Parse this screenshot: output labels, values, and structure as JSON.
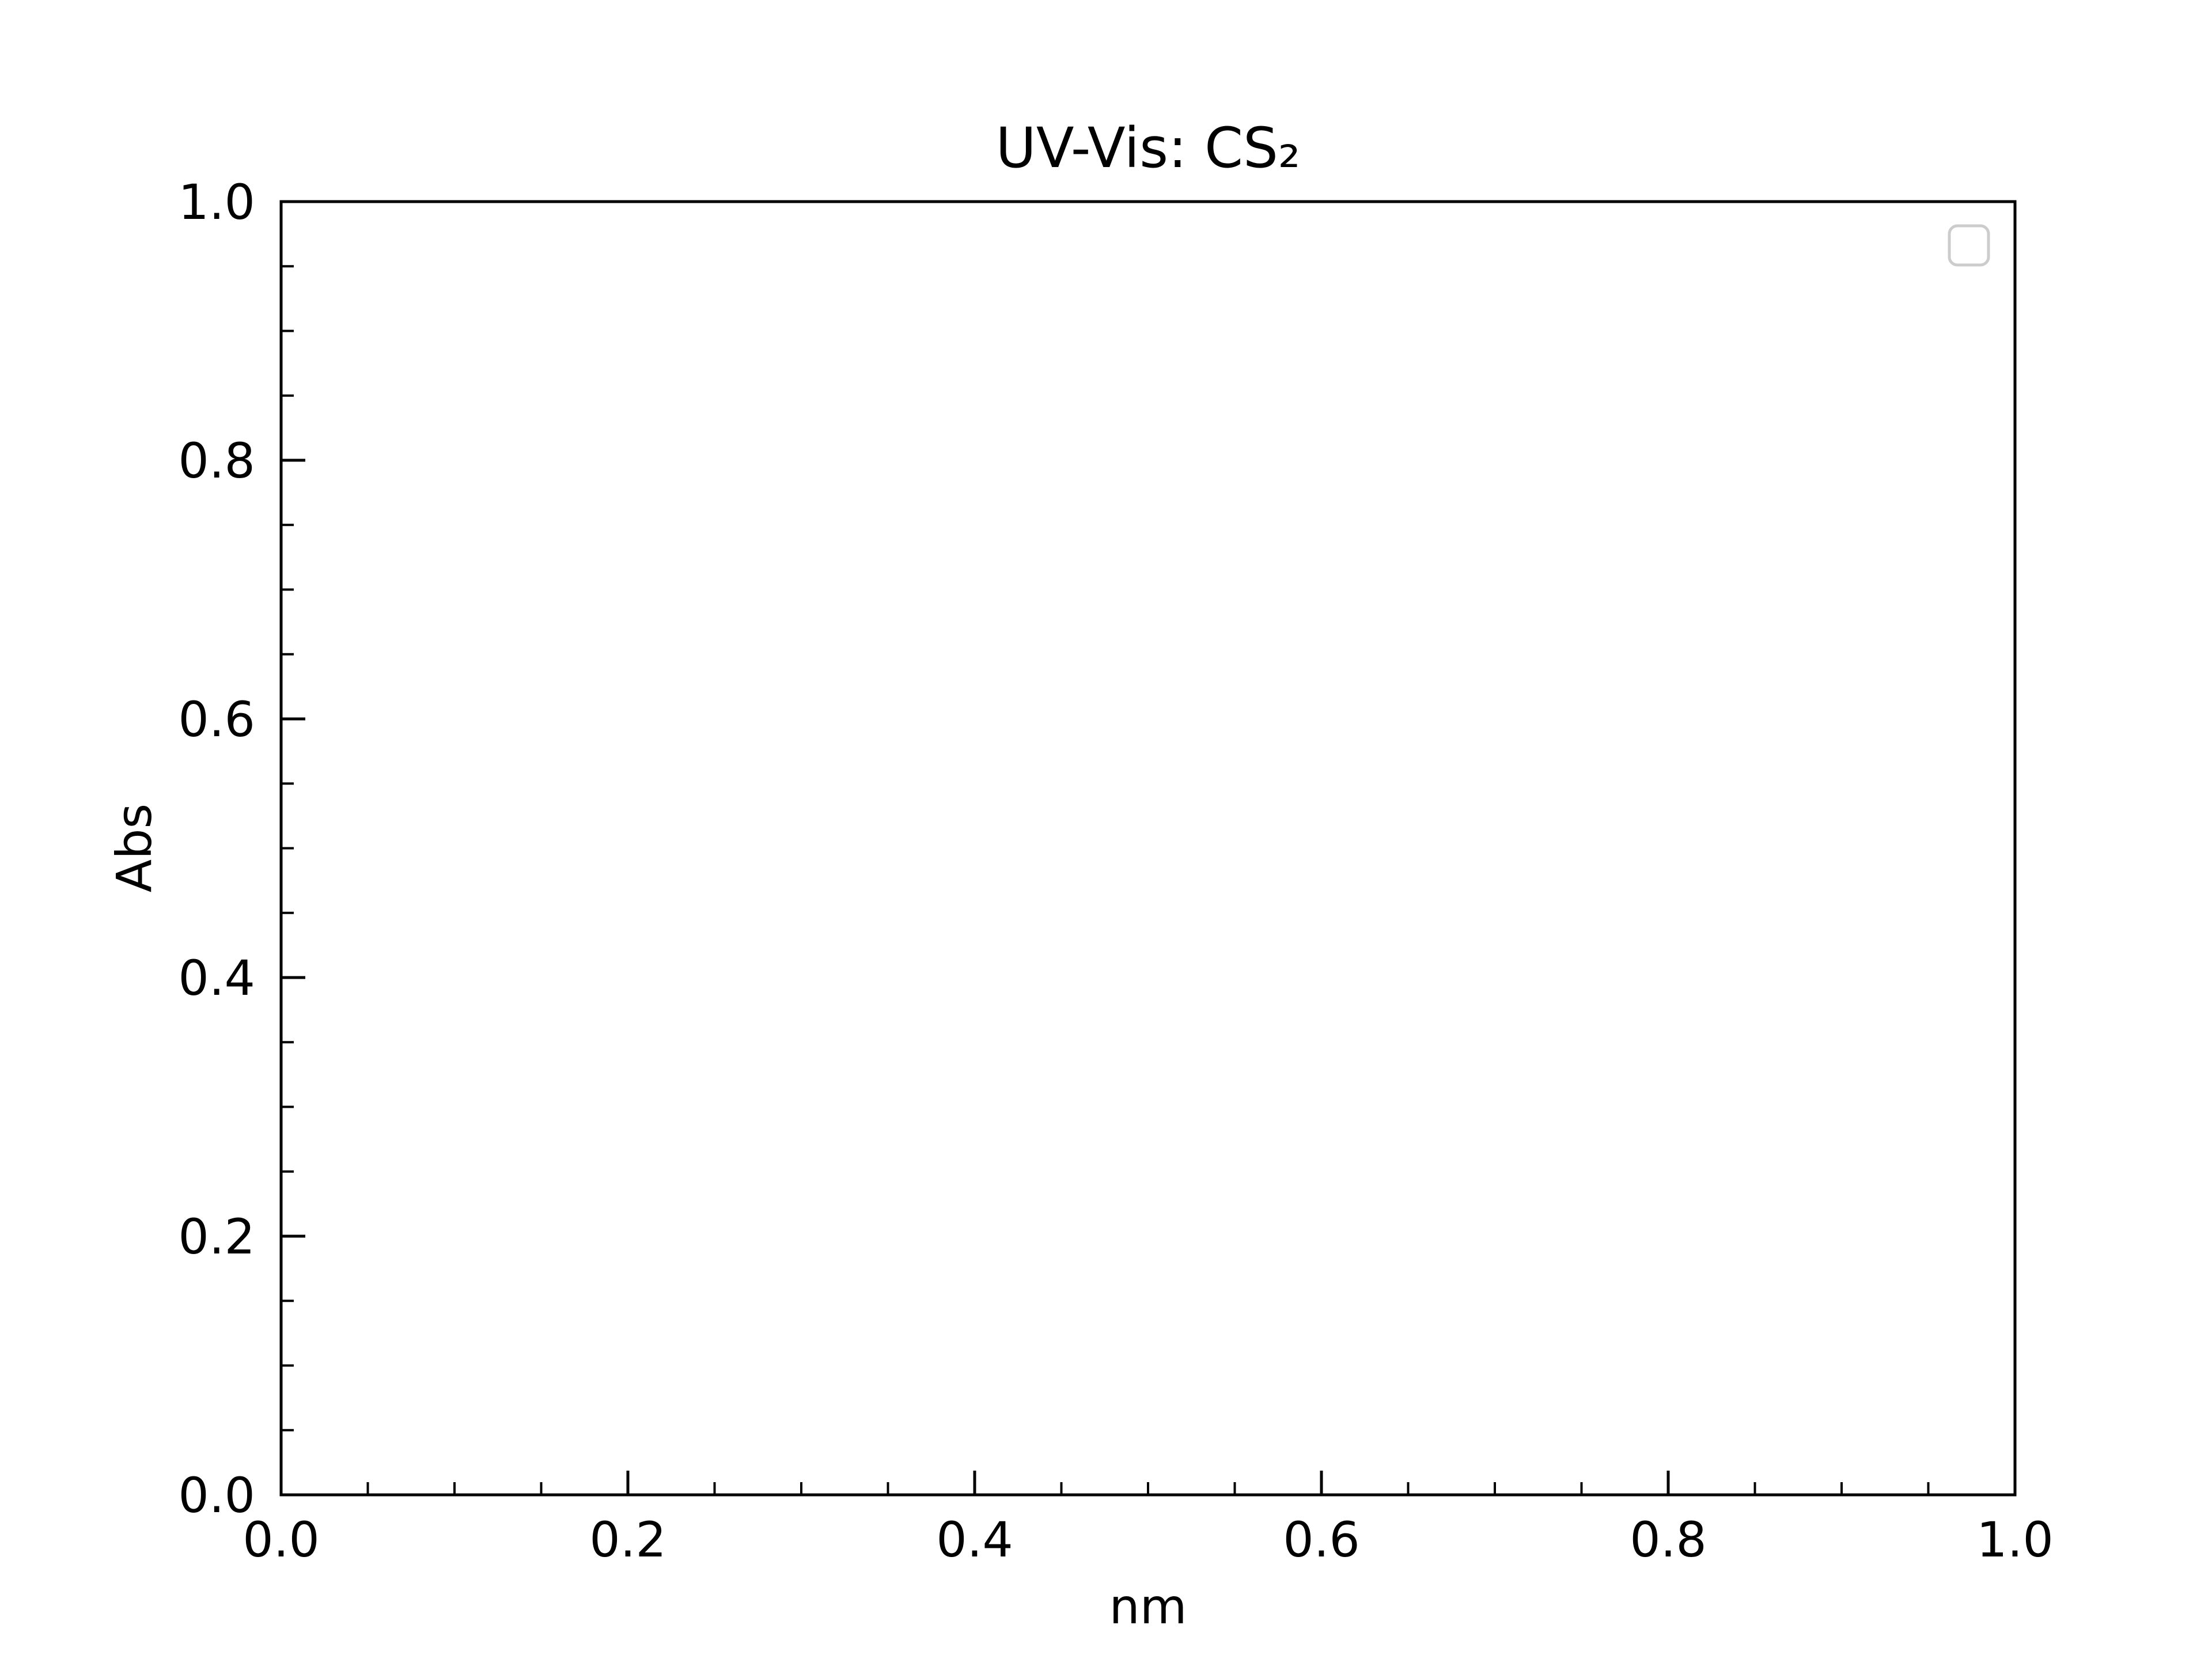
{
  "chart_data": {
    "type": "line",
    "title": "UV-Vis: CS₂",
    "xlabel": "nm",
    "ylabel": "Abs",
    "xlim": [
      0.0,
      1.0
    ],
    "ylim": [
      0.0,
      1.0
    ],
    "x_ticks": [
      "0.0",
      "0.2",
      "0.4",
      "0.6",
      "0.8",
      "1.0"
    ],
    "y_ticks": [
      "0.0",
      "0.2",
      "0.4",
      "0.6",
      "0.8",
      "1.0"
    ],
    "x_tick_values": [
      0.0,
      0.2,
      0.4,
      0.6,
      0.8,
      1.0
    ],
    "y_tick_values": [
      0.0,
      0.2,
      0.4,
      0.6,
      0.8,
      1.0
    ],
    "x_minor_step": 0.05,
    "y_minor_step": 0.05,
    "tick_direction": "in",
    "grid": false,
    "legend": {
      "placement": "upper-right",
      "entries": []
    },
    "series": []
  }
}
